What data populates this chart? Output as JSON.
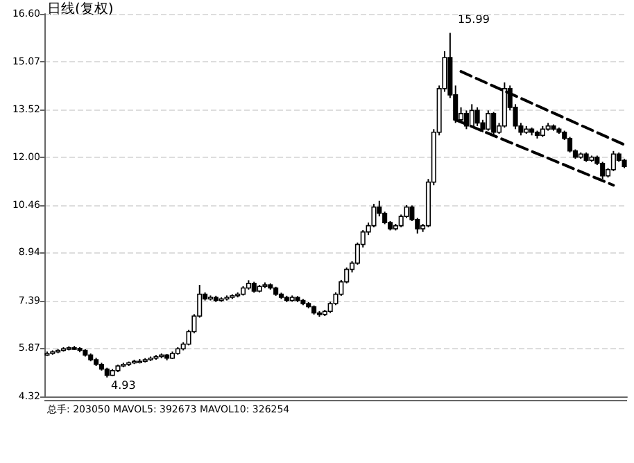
{
  "chart_data": {
    "type": "candlestick",
    "title": "日线(复权)",
    "color": "#000000",
    "grid": "y",
    "tick_labels": "y",
    "line_style": "dashed",
    "ylim": [
      4.32,
      16.6
    ],
    "yticks": [
      4.32,
      5.87,
      7.39,
      8.94,
      10.46,
      {
        "value": 12,
        "label": "12.00"
      },
      13.52,
      15.07,
      {
        "value": 16.6,
        "label": "16.60"
      }
    ],
    "categories": [
      null,
      null,
      null,
      null,
      null,
      null,
      null,
      null,
      null,
      null,
      null,
      null,
      null,
      null,
      null,
      null,
      null,
      null,
      null,
      null,
      null,
      null,
      null,
      null,
      null,
      null,
      null,
      null,
      null,
      null,
      null,
      null,
      null,
      null,
      null,
      null,
      null,
      null,
      null,
      null,
      null,
      null,
      null,
      null,
      null,
      null,
      null,
      null,
      null,
      null,
      null,
      null,
      null,
      null,
      null,
      null,
      null,
      null,
      null,
      null,
      null,
      null,
      null,
      null,
      null,
      null,
      null,
      null,
      null,
      null,
      null,
      null,
      null,
      null,
      null,
      null,
      null,
      null,
      null,
      null,
      null,
      null,
      null,
      null,
      null,
      null,
      null,
      null,
      null,
      null,
      null,
      null,
      null,
      null,
      null,
      null,
      null,
      null,
      null,
      null,
      null,
      null,
      null,
      null,
      null,
      null,
      null
    ],
    "ohlc": [
      [
        5.65,
        5.76,
        5.62,
        5.7
      ],
      [
        5.7,
        5.8,
        5.66,
        5.75
      ],
      [
        5.75,
        5.84,
        5.71,
        5.8
      ],
      [
        5.8,
        5.9,
        5.76,
        5.85
      ],
      [
        5.85,
        5.93,
        5.8,
        5.88
      ],
      [
        5.88,
        5.94,
        5.81,
        5.86
      ],
      [
        5.86,
        5.9,
        5.74,
        5.8
      ],
      [
        5.8,
        5.84,
        5.6,
        5.65
      ],
      [
        5.65,
        5.7,
        5.45,
        5.5
      ],
      [
        5.5,
        5.56,
        5.3,
        5.35
      ],
      [
        5.35,
        5.4,
        5.15,
        5.2
      ],
      [
        5.2,
        5.24,
        4.93,
        5.0
      ],
      [
        5.0,
        5.2,
        4.98,
        5.15
      ],
      [
        5.15,
        5.34,
        5.1,
        5.3
      ],
      [
        5.3,
        5.4,
        5.26,
        5.35
      ],
      [
        5.35,
        5.44,
        5.3,
        5.4
      ],
      [
        5.4,
        5.5,
        5.36,
        5.45
      ],
      [
        5.45,
        5.52,
        5.38,
        5.45
      ],
      [
        5.45,
        5.55,
        5.41,
        5.5
      ],
      [
        5.5,
        5.6,
        5.46,
        5.55
      ],
      [
        5.55,
        5.65,
        5.5,
        5.6
      ],
      [
        5.6,
        5.7,
        5.55,
        5.65
      ],
      [
        5.65,
        5.68,
        5.48,
        5.55
      ],
      [
        5.55,
        5.76,
        5.52,
        5.7
      ],
      [
        5.7,
        5.9,
        5.66,
        5.85
      ],
      [
        5.85,
        6.06,
        5.8,
        6.0
      ],
      [
        6.0,
        6.46,
        5.96,
        6.4
      ],
      [
        6.4,
        6.96,
        6.35,
        6.9
      ],
      [
        6.9,
        7.9,
        6.85,
        7.6
      ],
      [
        7.6,
        7.66,
        7.4,
        7.45
      ],
      [
        7.45,
        7.56,
        7.4,
        7.5
      ],
      [
        7.5,
        7.55,
        7.35,
        7.4
      ],
      [
        7.4,
        7.5,
        7.36,
        7.45
      ],
      [
        7.45,
        7.56,
        7.4,
        7.5
      ],
      [
        7.5,
        7.6,
        7.45,
        7.55
      ],
      [
        7.55,
        7.66,
        7.5,
        7.6
      ],
      [
        7.6,
        7.86,
        7.56,
        7.8
      ],
      [
        7.8,
        8.05,
        7.75,
        7.95
      ],
      [
        7.95,
        8.0,
        7.65,
        7.7
      ],
      [
        7.7,
        7.9,
        7.66,
        7.85
      ],
      [
        7.85,
        7.98,
        7.8,
        7.9
      ],
      [
        7.9,
        7.95,
        7.75,
        7.8
      ],
      [
        7.8,
        7.84,
        7.55,
        7.6
      ],
      [
        7.6,
        7.65,
        7.45,
        7.5
      ],
      [
        7.5,
        7.55,
        7.35,
        7.4
      ],
      [
        7.4,
        7.56,
        7.36,
        7.5
      ],
      [
        7.5,
        7.54,
        7.35,
        7.4
      ],
      [
        7.4,
        7.45,
        7.25,
        7.3
      ],
      [
        7.3,
        7.35,
        7.15,
        7.2
      ],
      [
        7.2,
        7.24,
        6.95,
        7.0
      ],
      [
        7.0,
        7.06,
        6.88,
        6.95
      ],
      [
        6.95,
        7.1,
        6.9,
        7.05
      ],
      [
        7.05,
        7.36,
        7.0,
        7.3
      ],
      [
        7.3,
        7.66,
        7.25,
        7.6
      ],
      [
        7.6,
        8.06,
        7.55,
        8.0
      ],
      [
        8.0,
        8.46,
        7.95,
        8.4
      ],
      [
        8.4,
        8.66,
        8.3,
        8.6
      ],
      [
        8.6,
        9.26,
        8.55,
        9.2
      ],
      [
        9.2,
        9.66,
        9.1,
        9.6
      ],
      [
        9.6,
        9.9,
        9.5,
        9.8
      ],
      [
        9.8,
        10.5,
        9.75,
        10.4
      ],
      [
        10.4,
        10.6,
        10.1,
        10.2
      ],
      [
        10.2,
        10.25,
        9.85,
        9.9
      ],
      [
        9.9,
        9.95,
        9.65,
        9.7
      ],
      [
        9.7,
        9.86,
        9.65,
        9.8
      ],
      [
        9.8,
        10.16,
        9.75,
        10.1
      ],
      [
        10.1,
        10.46,
        10.05,
        10.4
      ],
      [
        10.4,
        10.45,
        9.95,
        10.0
      ],
      [
        10.0,
        10.05,
        9.55,
        9.7
      ],
      [
        9.7,
        9.86,
        9.6,
        9.8
      ],
      [
        9.8,
        11.3,
        9.75,
        11.2
      ],
      [
        11.2,
        12.9,
        11.1,
        12.8
      ],
      [
        12.8,
        14.3,
        12.7,
        14.2
      ],
      [
        14.2,
        15.4,
        14.1,
        15.2
      ],
      [
        15.2,
        15.99,
        13.9,
        14.0
      ],
      [
        14.0,
        14.3,
        13.1,
        13.2
      ],
      [
        13.2,
        13.6,
        13.1,
        13.4
      ],
      [
        13.4,
        13.5,
        12.9,
        13.0
      ],
      [
        13.0,
        13.7,
        12.95,
        13.5
      ],
      [
        13.5,
        13.6,
        13.0,
        13.1
      ],
      [
        13.1,
        13.2,
        12.8,
        12.9
      ],
      [
        12.9,
        13.5,
        12.85,
        13.4
      ],
      [
        13.4,
        13.45,
        12.7,
        12.8
      ],
      [
        12.8,
        13.1,
        12.75,
        13.0
      ],
      [
        13.0,
        14.4,
        12.95,
        14.2
      ],
      [
        14.2,
        14.3,
        13.5,
        13.6
      ],
      [
        13.6,
        13.7,
        12.9,
        13.0
      ],
      [
        13.0,
        13.1,
        12.7,
        12.8
      ],
      [
        12.8,
        13.0,
        12.75,
        12.9
      ],
      [
        12.9,
        12.95,
        12.7,
        12.8
      ],
      [
        12.8,
        12.85,
        12.6,
        12.7
      ],
      [
        12.7,
        13.0,
        12.65,
        12.9
      ],
      [
        12.9,
        13.1,
        12.85,
        13.0
      ],
      [
        13.0,
        13.05,
        12.85,
        12.9
      ],
      [
        12.9,
        12.95,
        12.75,
        12.8
      ],
      [
        12.8,
        12.85,
        12.55,
        12.6
      ],
      [
        12.6,
        12.65,
        12.15,
        12.2
      ],
      [
        12.2,
        12.25,
        11.95,
        12.0
      ],
      [
        12.0,
        12.15,
        11.95,
        12.1
      ],
      [
        12.1,
        12.15,
        11.85,
        11.9
      ],
      [
        11.9,
        12.05,
        11.85,
        12.0
      ],
      [
        12.0,
        12.05,
        11.75,
        11.8
      ],
      [
        11.8,
        11.85,
        11.3,
        11.4
      ],
      [
        11.4,
        11.65,
        11.35,
        11.6
      ],
      [
        11.6,
        12.2,
        11.55,
        12.1
      ],
      [
        12.1,
        12.15,
        11.85,
        11.9
      ],
      [
        11.9,
        11.95,
        11.65,
        11.7
      ]
    ],
    "series": [
      {
        "type": "line",
        "color": "#000000",
        "values": [
          null,
          null,
          null,
          null,
          null,
          null,
          null,
          null,
          null,
          null,
          null,
          null,
          null,
          null,
          null,
          null,
          null,
          null,
          null,
          null,
          null,
          null,
          null,
          null,
          null,
          null,
          null,
          null,
          null,
          null,
          null,
          null,
          null,
          null,
          null,
          null,
          null,
          null,
          null,
          null,
          null,
          null,
          null,
          null,
          null,
          null,
          null,
          null,
          null,
          null,
          null,
          null,
          null,
          null,
          null,
          null,
          null,
          null,
          null,
          null,
          null,
          null,
          null,
          null,
          null,
          null,
          null,
          null,
          null,
          null,
          null,
          null,
          null,
          null,
          null,
          null,
          14.75,
          null,
          null,
          null,
          null,
          null,
          null,
          null,
          null,
          null,
          null,
          null,
          null,
          null,
          null,
          null,
          null,
          null,
          null,
          null,
          null,
          null,
          null,
          null,
          null,
          null,
          null,
          null,
          null,
          null,
          12.4
        ]
      },
      {
        "type": "line",
        "color": "#000000",
        "values": [
          null,
          null,
          null,
          null,
          null,
          null,
          null,
          null,
          null,
          null,
          null,
          null,
          null,
          null,
          null,
          null,
          null,
          null,
          null,
          null,
          null,
          null,
          null,
          null,
          null,
          null,
          null,
          null,
          null,
          null,
          null,
          null,
          null,
          null,
          null,
          null,
          null,
          null,
          null,
          null,
          null,
          null,
          null,
          null,
          null,
          null,
          null,
          null,
          null,
          null,
          null,
          null,
          null,
          null,
          null,
          null,
          null,
          null,
          null,
          null,
          null,
          null,
          null,
          null,
          null,
          null,
          null,
          null,
          null,
          null,
          null,
          null,
          null,
          null,
          null,
          13.2,
          null,
          null,
          null,
          null,
          null,
          null,
          null,
          null,
          null,
          null,
          null,
          null,
          null,
          null,
          null,
          null,
          null,
          null,
          null,
          null,
          null,
          null,
          null,
          null,
          null,
          null,
          null,
          null,
          11.1,
          null,
          null
        ]
      }
    ],
    "annotations": [
      "15.99",
      "4.93",
      "总手: 203050 MAVOL5: 392673 MAVOL10: 326254"
    ]
  }
}
